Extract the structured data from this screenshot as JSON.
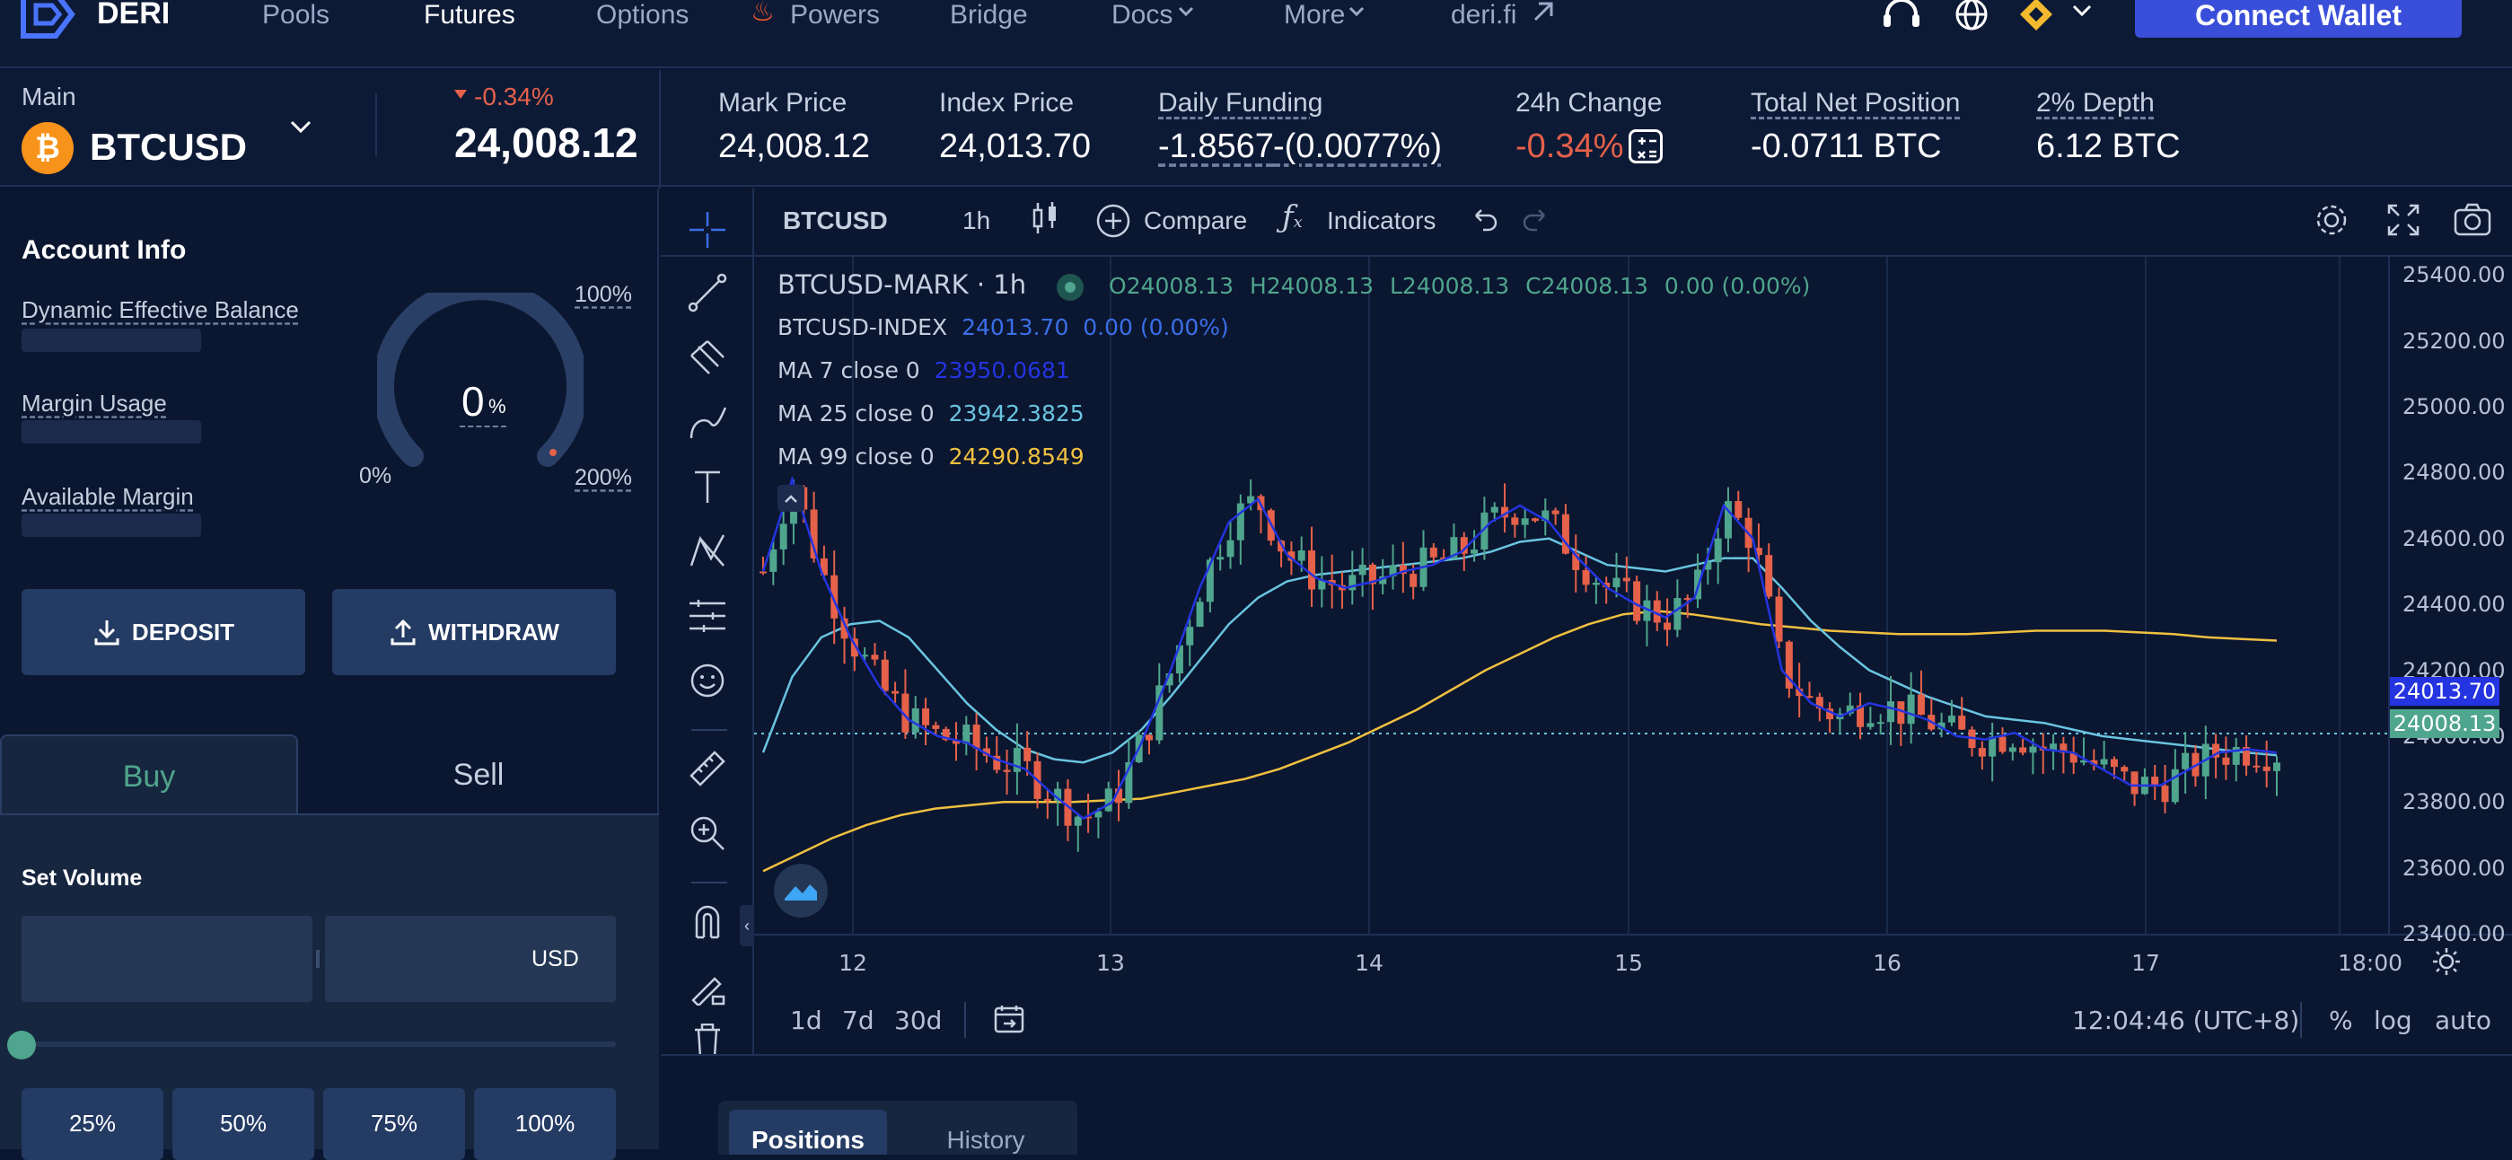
{
  "nav": {
    "brand": "DERI",
    "items": [
      {
        "label": "Pools"
      },
      {
        "label": "Futures"
      },
      {
        "label": "Options"
      },
      {
        "label": "Powers"
      },
      {
        "label": "Bridge"
      },
      {
        "label": "Docs"
      },
      {
        "label": "More"
      },
      {
        "label": "deri.fi"
      }
    ],
    "connect_wallet": "Connect Wallet"
  },
  "symbol": {
    "section_label": "Main",
    "name": "BTCUSD",
    "change": "-0.34%",
    "last_price": "24,008.12"
  },
  "stats": {
    "mark_price_label": "Mark Price",
    "mark_price": "24,008.12",
    "index_price_label": "Index Price",
    "index_price": "24,013.70",
    "daily_funding_label": "Daily Funding",
    "daily_funding_value": "-1.8567",
    "daily_funding_pct": "-(0.0077%)",
    "change_24h_label": "24h Change",
    "change_24h": "-0.34%",
    "net_position_label": "Total Net Position",
    "net_position": "-0.0711 BTC",
    "depth_label": "2% Depth",
    "depth": "6.12 BTC"
  },
  "account": {
    "title": "Account Info",
    "dynamic_balance_label": "Dynamic Effective Balance",
    "margin_usage_label": "Margin Usage",
    "available_margin_label": "Available Margin",
    "gauge_value": "0",
    "gauge_unit": "%",
    "gauge_min": "0%",
    "gauge_mid": "100%",
    "gauge_max": "200%",
    "deposit": "DEPOSIT",
    "withdraw": "WITHDRAW"
  },
  "trade": {
    "buy_tab": "Buy",
    "sell_tab": "Sell",
    "set_volume": "Set Volume",
    "currency": "USD",
    "pct_buttons": [
      "25%",
      "50%",
      "75%",
      "100%"
    ]
  },
  "chart_toolbar": {
    "symbol": "BTCUSD",
    "interval": "1h",
    "compare": "Compare",
    "indicators": "Indicators"
  },
  "legend": {
    "mark_title": "BTCUSD-MARK · 1h",
    "ohlc": {
      "o": "O24008.13",
      "h": "H24008.13",
      "l": "L24008.13",
      "c": "C24008.13",
      "chg": "0.00 (0.00%)"
    },
    "index_label": "BTCUSD-INDEX",
    "index_value": "24013.70  0.00 (0.00%)",
    "ma7_label": "MA 7 close 0",
    "ma7_value": "23950.0681",
    "ma25_label": "MA 25 close 0",
    "ma25_value": "23942.3825",
    "ma99_label": "MA 99 close 0",
    "ma99_value": "24290.8549"
  },
  "price_axis": [
    "25400.00",
    "25200.00",
    "25000.00",
    "24800.00",
    "24600.00",
    "24400.00",
    "24200.00",
    "24000.00",
    "23800.00",
    "23600.00",
    "23400.00"
  ],
  "price_tags": {
    "index": "24013.70",
    "mark": "24008.13"
  },
  "time_axis": [
    "12",
    "13",
    "14",
    "15",
    "16",
    "17",
    "18:00"
  ],
  "bottom_bar": {
    "ranges": [
      "1d",
      "7d",
      "30d"
    ],
    "clock": "12:04:46 (UTC+8)",
    "pct": "%",
    "log": "log",
    "auto": "auto"
  },
  "positions_tabs": {
    "positions": "Positions",
    "history": "History"
  },
  "colors": {
    "up": "#4fa58d",
    "down": "#e5614a",
    "ma7": "#2434e0",
    "ma25": "#69c4e0",
    "ma99": "#f0c040",
    "accent": "#3a4fd9"
  },
  "chart_data": {
    "type": "line",
    "title": "BTCUSD-MARK · 1h",
    "xlabel": "",
    "ylabel": "",
    "x_ticks": [
      "12",
      "13",
      "14",
      "15",
      "16",
      "17",
      "18:00"
    ],
    "ylim": [
      23400,
      25450
    ],
    "series": [
      {
        "name": "MA 7 close 0",
        "values": [
          24500,
          24780,
          24500,
          24300,
          24150,
          24050,
          24000,
          23980,
          23930,
          23900,
          23820,
          23750,
          23800,
          23980,
          24200,
          24450,
          24650,
          24720,
          24550,
          24480,
          24450,
          24470,
          24500,
          24520,
          24560,
          24650,
          24700,
          24650,
          24540,
          24450,
          24400,
          24360,
          24420,
          24700,
          24600,
          24200,
          24100,
          24060,
          24100,
          24080,
          24050,
          24000,
          23990,
          24010,
          23960,
          23950,
          23900,
          23850,
          23850,
          23900,
          23950,
          23960,
          23950
        ]
      },
      {
        "name": "MA 25 close 0",
        "values": [
          23950,
          24180,
          24300,
          24340,
          24350,
          24300,
          24200,
          24100,
          24020,
          23960,
          23930,
          23920,
          23950,
          24020,
          24120,
          24230,
          24340,
          24420,
          24470,
          24490,
          24500,
          24510,
          24520,
          24530,
          24540,
          24560,
          24590,
          24600,
          24560,
          24520,
          24510,
          24500,
          24520,
          24540,
          24540,
          24450,
          24350,
          24270,
          24200,
          24160,
          24120,
          24090,
          24060,
          24050,
          24040,
          24020,
          24000,
          23990,
          23980,
          23970,
          23960,
          23950,
          23942
        ]
      },
      {
        "name": "MA 99 close 0",
        "values": [
          23590,
          23640,
          23690,
          23730,
          23760,
          23780,
          23790,
          23800,
          23800,
          23800,
          23805,
          23810,
          23830,
          23850,
          23870,
          23900,
          23940,
          23980,
          24030,
          24080,
          24140,
          24200,
          24250,
          24300,
          24340,
          24370,
          24380,
          24370,
          24355,
          24340,
          24330,
          24320,
          24315,
          24310,
          24310,
          24310,
          24315,
          24320,
          24320,
          24320,
          24315,
          24310,
          24300,
          24295,
          24290
        ]
      }
    ]
  }
}
